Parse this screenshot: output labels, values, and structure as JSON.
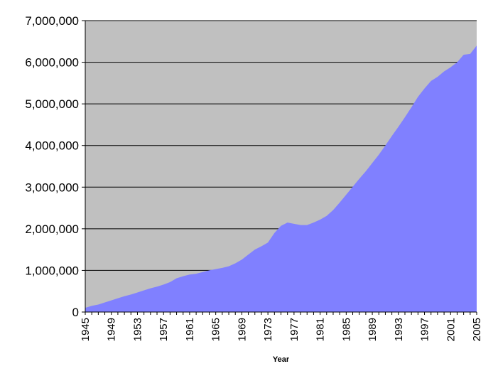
{
  "chart_data": {
    "type": "area",
    "xlabel": "Year",
    "ylabel": "",
    "title": "",
    "ylim": [
      0,
      7000000
    ],
    "xlim": [
      1945,
      2005
    ],
    "yticks": [
      0,
      1000000,
      2000000,
      3000000,
      4000000,
      5000000,
      6000000,
      7000000
    ],
    "ytick_labels": [
      "0",
      "1,000,000",
      "2,000,000",
      "3,000,000",
      "4,000,000",
      "5,000,000",
      "6,000,000",
      "7,000,000"
    ],
    "xticks": [
      1945,
      1949,
      1953,
      1957,
      1961,
      1965,
      1969,
      1973,
      1977,
      1981,
      1985,
      1989,
      1993,
      1997,
      2001,
      2005
    ],
    "grid": true,
    "colors": {
      "plot_bg": "#c0c0c0",
      "fill": "#8080ff",
      "grid": "#000000"
    },
    "x": [
      1945,
      1946,
      1947,
      1948,
      1949,
      1950,
      1951,
      1952,
      1953,
      1954,
      1955,
      1956,
      1957,
      1958,
      1959,
      1960,
      1961,
      1962,
      1963,
      1964,
      1965,
      1966,
      1967,
      1968,
      1969,
      1970,
      1971,
      1972,
      1973,
      1974,
      1975,
      1976,
      1977,
      1978,
      1979,
      1980,
      1981,
      1982,
      1983,
      1984,
      1985,
      1986,
      1987,
      1988,
      1989,
      1990,
      1991,
      1992,
      1993,
      1994,
      1995,
      1996,
      1997,
      1998,
      1999,
      2000,
      2001,
      2002,
      2003,
      2004,
      2005
    ],
    "series": [
      {
        "values": [
          100000,
          150000,
          180000,
          230000,
          280000,
          330000,
          380000,
          420000,
          470000,
          520000,
          570000,
          610000,
          660000,
          720000,
          810000,
          860000,
          900000,
          920000,
          960000,
          1000000,
          1030000,
          1060000,
          1100000,
          1170000,
          1260000,
          1380000,
          1500000,
          1580000,
          1670000,
          1900000,
          2070000,
          2150000,
          2120000,
          2090000,
          2090000,
          2150000,
          2220000,
          2310000,
          2450000,
          2630000,
          2820000,
          3010000,
          3200000,
          3380000,
          3580000,
          3780000,
          4000000,
          4230000,
          4450000,
          4680000,
          4920000,
          5170000,
          5370000,
          5550000,
          5650000,
          5780000,
          5880000,
          6000000,
          6180000,
          6200000,
          6400000
        ]
      }
    ]
  }
}
